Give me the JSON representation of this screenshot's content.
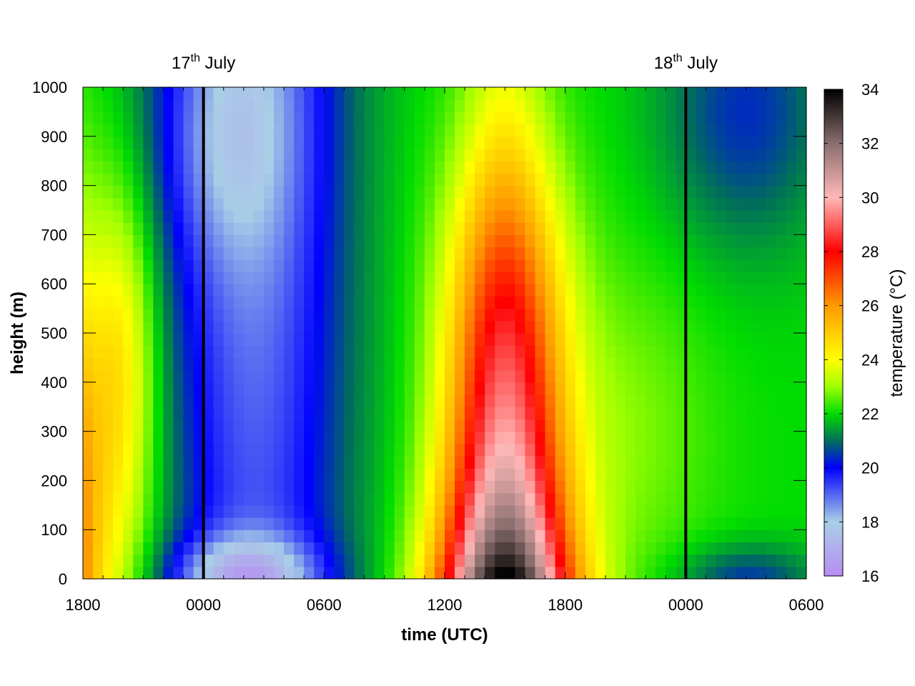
{
  "chart_data": {
    "type": "heatmap",
    "title": "",
    "xlabel": "time (UTC)",
    "ylabel": "height (m)",
    "colorbar_label": "temperature (°C)",
    "x_tick_labels": [
      "1800",
      "0000",
      "0600",
      "1200",
      "1800",
      "0000",
      "0600"
    ],
    "x_range_hours": [
      0,
      36
    ],
    "y_ticks": [
      0,
      100,
      200,
      300,
      400,
      500,
      600,
      700,
      800,
      900,
      1000
    ],
    "ylim": [
      0,
      1000
    ],
    "colorbar_ticks": [
      16,
      18,
      20,
      22,
      24,
      26,
      28,
      30,
      32,
      34
    ],
    "colorbar_range": [
      16,
      34
    ],
    "palette": [
      {
        "value": 16,
        "color": "#b78cf2"
      },
      {
        "value": 18,
        "color": "#a9cfe6"
      },
      {
        "value": 20,
        "color": "#0000ff"
      },
      {
        "value": 21,
        "color": "#006e5a"
      },
      {
        "value": 22,
        "color": "#00dc00"
      },
      {
        "value": 23,
        "color": "#9fff00"
      },
      {
        "value": 24,
        "color": "#ffff00"
      },
      {
        "value": 26,
        "color": "#ff9900"
      },
      {
        "value": 28,
        "color": "#ff0000"
      },
      {
        "value": 30,
        "color": "#ffb8b8"
      },
      {
        "value": 32,
        "color": "#8a6e6e"
      },
      {
        "value": 34,
        "color": "#000000"
      }
    ],
    "midnight_markers": [
      {
        "label": "17",
        "sup": "th",
        "month": " July",
        "x_hours": 6
      },
      {
        "label": "18",
        "sup": "th",
        "month": " July",
        "x_hours": 30
      }
    ],
    "x_step_hours": 0.5,
    "y_step_m": 25,
    "description_of_values": "temperature grid in degrees C; rows = heights 0..1000 m, columns = time 0..36 h after 1800 UTC",
    "temperature_grid_generated_from": "key points",
    "key_points": [
      {
        "t": 0,
        "z": 0,
        "v": 27.2
      },
      {
        "t": 2,
        "z": 300,
        "v": 24.2
      },
      {
        "t": 4,
        "z": 700,
        "v": 21.5
      },
      {
        "t": 6,
        "z": 950,
        "v": 18.0
      },
      {
        "t": 8,
        "z": 30,
        "v": 16.5
      },
      {
        "t": 12,
        "z": 900,
        "v": 19.0
      },
      {
        "t": 15,
        "z": 800,
        "v": 22.0
      },
      {
        "t": 21,
        "z": 0,
        "v": 33.8
      },
      {
        "t": 21,
        "z": 600,
        "v": 27.0
      },
      {
        "t": 21,
        "z": 950,
        "v": 23.5
      },
      {
        "t": 26,
        "z": 200,
        "v": 23.5
      },
      {
        "t": 30,
        "z": 0,
        "v": 21.0
      },
      {
        "t": 33,
        "z": 900,
        "v": 20.0
      },
      {
        "t": 36,
        "z": 0,
        "v": 19.5
      }
    ]
  }
}
